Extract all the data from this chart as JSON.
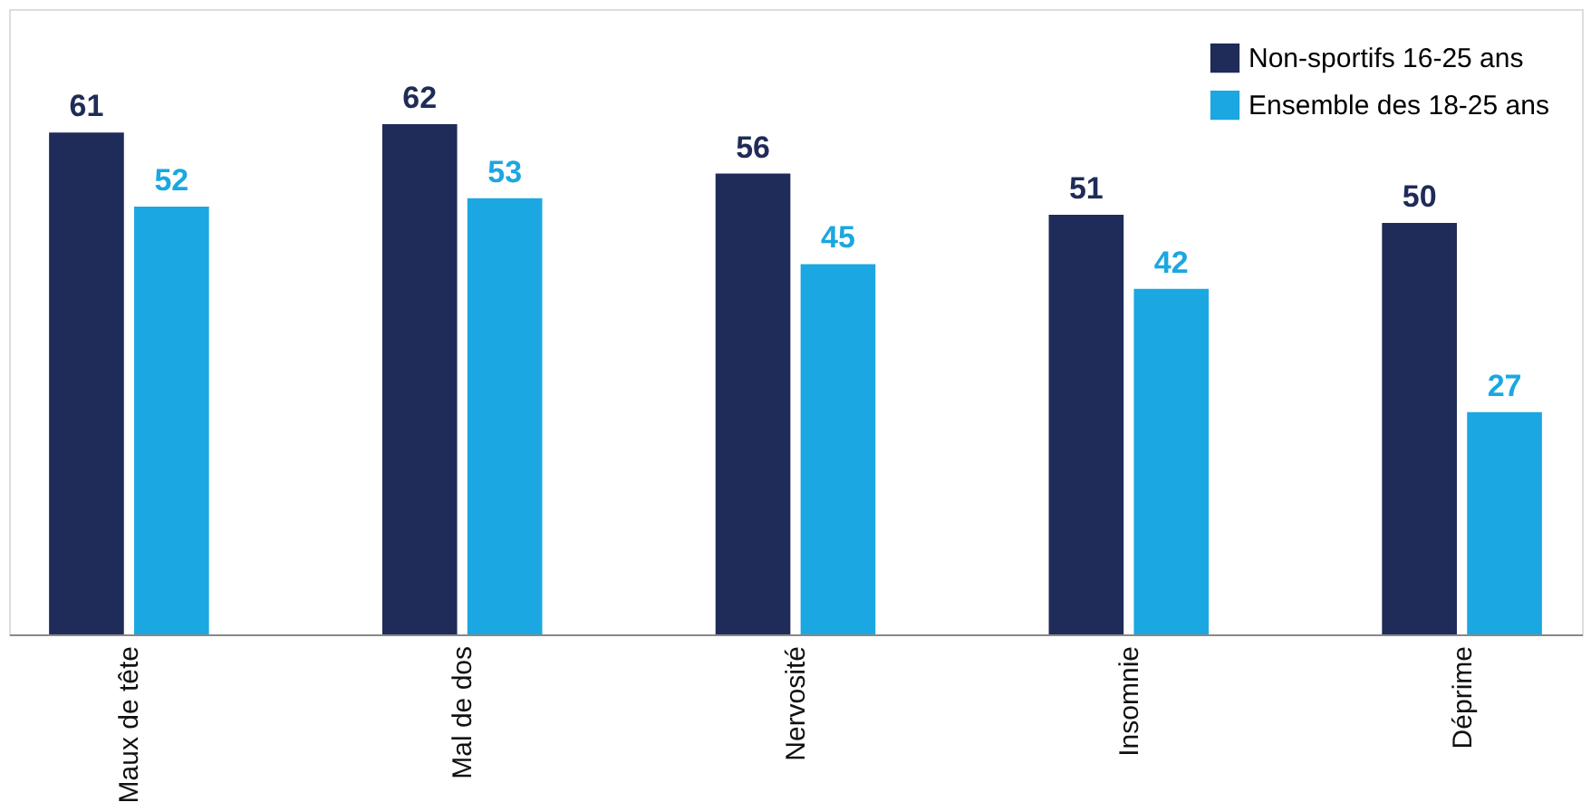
{
  "chart_data": {
    "type": "bar",
    "categories": [
      "Maux de tête",
      "Mal de dos",
      "Nervosité",
      "Insomnie",
      "Déprime"
    ],
    "series": [
      {
        "name": "Non-sportifs 16-25 ans",
        "color": "#1f2b58",
        "values": [
          61,
          62,
          56,
          51,
          50
        ]
      },
      {
        "name": "Ensemble des 18-25 ans",
        "color": "#1ba7e1",
        "values": [
          52,
          53,
          45,
          42,
          27
        ]
      }
    ],
    "ylim": [
      0,
      76
    ],
    "data_labels": true,
    "legend": "top right",
    "grid": false,
    "tick_labels": "x"
  }
}
